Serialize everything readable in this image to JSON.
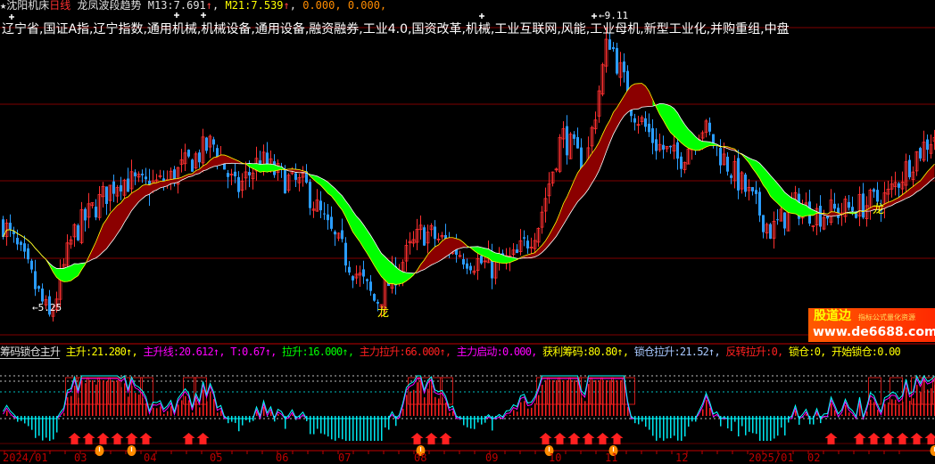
{
  "main_header": {
    "star_icon": "star-icon",
    "stock_name": "沈阳机床",
    "period": "日线",
    "indicator_name": "龙凤波段趋势",
    "m13_label": "M13:",
    "m13_value": "7.691",
    "m21_label": "M21:",
    "m21_value": "7.539",
    "extra1": "0.000,",
    "extra2": "0.000,",
    "up_arrow": "↑"
  },
  "concepts": "辽宁省,国证A指,辽宁指数,通用机械,机械设备,通用设备,融资融券,工业4.0,国资改革,机械,工业互联网,风能,工业母机,新型工业化,并购重组,中盘",
  "annotations": {
    "high_label": "←9.11",
    "low_label": "←5.25",
    "dragon_1": "龙",
    "dragon_2": "龙"
  },
  "indicator_header": {
    "name": "筹码锁仓主升",
    "items": [
      {
        "label": "主升:",
        "value": "21.280↑,",
        "color": "#ffff00"
      },
      {
        "label": "主升线:",
        "value": "20.612↑,",
        "color": "#ff00ff"
      },
      {
        "label": "T:",
        "value": "0.67↑,",
        "color": "#ff00ff"
      },
      {
        "label": "拉升:",
        "value": "16.000↑,",
        "color": "#00ff00"
      },
      {
        "label": "主力拉升:",
        "value": "66.000↑,",
        "color": "#ff2020"
      },
      {
        "label": "主力启动:",
        "value": "0.000,",
        "color": "#ff00ff"
      },
      {
        "label": "获利筹码:",
        "value": "80.80↑,",
        "color": "#ffff00"
      },
      {
        "label": "锁仓拉升:",
        "value": "21.52↑,",
        "color": "#a8c8ff"
      },
      {
        "label": "反转拉升:",
        "value": "0,",
        "color": "#ff2020"
      },
      {
        "label": "锁仓:",
        "value": "0,",
        "color": "#ffff00"
      },
      {
        "label": "开始锁仓:",
        "value": "0.00",
        "color": "#ffff00"
      }
    ]
  },
  "watermark": {
    "line1": "股道边",
    "line2": "指标公式量化资源",
    "line3": "www.de6688.com"
  },
  "colors": {
    "up": "#ff3030",
    "down": "#2a9dff",
    "ribbon_down": "#00ff00",
    "ribbon_up": "#8b0000",
    "ma_fast": "#ffff00",
    "ma_slow": "#ffffff",
    "grid": "#800000"
  },
  "chart_data": {
    "type": "candlestick",
    "title": "沈阳机床 日线",
    "x_tick_labels": [
      "2024/01",
      "03",
      "04",
      "05",
      "06",
      "07",
      "08",
      "09",
      "10",
      "11",
      "12",
      "2025/01",
      "02"
    ],
    "ylim": [
      5.25,
      9.11
    ],
    "approx_close_path": [
      6.55,
      6.0,
      5.35,
      6.4,
      6.77,
      7.1,
      7.0,
      7.05,
      7.3,
      7.54,
      6.94,
      7.32,
      7.1,
      6.99,
      6.44,
      6.0,
      5.56,
      6.0,
      6.44,
      6.3,
      6.11,
      6.0,
      6.1,
      6.55,
      7.65,
      7.21,
      8.87,
      7.98,
      7.54,
      7.32,
      7.76,
      7.32,
      6.9,
      6.44,
      6.77,
      6.66,
      6.7,
      6.77,
      6.88,
      7.32,
      7.65
    ],
    "series": [
      {
        "name": "M13",
        "last": 7.691
      },
      {
        "name": "M21",
        "last": 7.539
      }
    ]
  }
}
